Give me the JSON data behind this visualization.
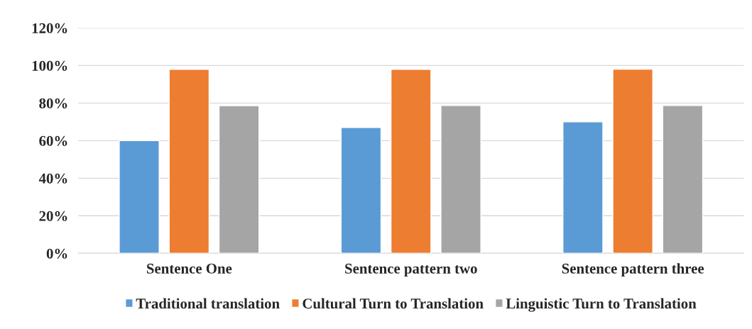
{
  "chart_data": {
    "type": "bar",
    "categories": [
      "Sentence One",
      "Sentence pattern two",
      "Sentence pattern three"
    ],
    "series": [
      {
        "name": "Traditional translation",
        "color": "#5b9bd5",
        "values": [
          0.6,
          0.67,
          0.7
        ]
      },
      {
        "name": "Cultural Turn to Translation",
        "color": "#ed7d31",
        "values": [
          0.98,
          0.98,
          0.981
        ]
      },
      {
        "name": "Linguistic Turn to Translation",
        "color": "#a5a5a5",
        "values": [
          0.786,
          0.787,
          0.787
        ]
      }
    ],
    "ylim": [
      0,
      1.2
    ],
    "yticks": [
      {
        "value": 0,
        "label": "0%"
      },
      {
        "value": 0.2,
        "label": "20%"
      },
      {
        "value": 0.4,
        "label": "40%"
      },
      {
        "value": 0.6,
        "label": "60%"
      },
      {
        "value": 0.8,
        "label": "80%"
      },
      {
        "value": 1.0,
        "label": "100%"
      },
      {
        "value": 1.2,
        "label": "120%"
      }
    ],
    "grid": "y",
    "legend": "bottom"
  }
}
